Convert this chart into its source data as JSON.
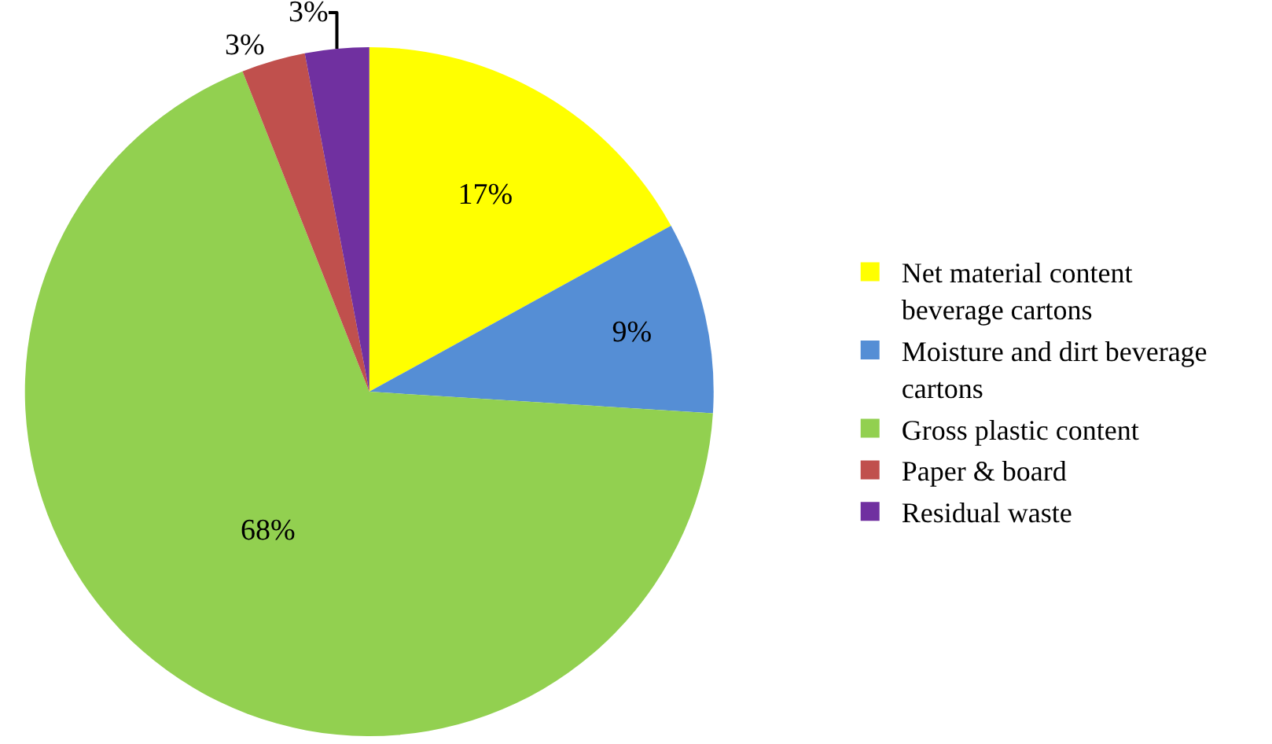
{
  "chart_data": {
    "type": "pie",
    "categories": [
      "Net material content beverage cartons",
      "Moisture and dirt beverage cartons",
      "Gross plastic content",
      "Paper & board",
      "Residual waste"
    ],
    "values": [
      17,
      9,
      68,
      3,
      3
    ],
    "colors": [
      "#ffff00",
      "#558ed5",
      "#92d050",
      "#c0504d",
      "#7030a0"
    ],
    "value_labels": [
      "17%",
      "9%",
      "68%",
      "3%",
      "3%"
    ],
    "legend": "right"
  }
}
